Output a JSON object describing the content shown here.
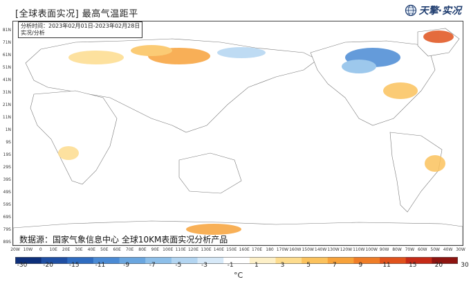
{
  "title": "[全球表面实况] 最高气温距平",
  "logo": {
    "text": "天擎·实况",
    "icon": "globe-icon",
    "color": "#1d3b6e"
  },
  "info": {
    "line1": "分析时间：2023年02月01日-2023年02月28日",
    "line2": "实况/分析"
  },
  "source": "数据源：国家气象信息中心  全球10KM表面实况分析产品",
  "lat_labels": [
    "81N",
    "71N",
    "61N",
    "51N",
    "41N",
    "31N",
    "21N",
    "11N",
    "1N",
    "9S",
    "19S",
    "29S",
    "39S",
    "49S",
    "59S",
    "69S",
    "79S",
    "89S"
  ],
  "lon_labels": [
    "20W",
    "10W",
    "0",
    "10E",
    "20E",
    "30E",
    "40E",
    "50E",
    "60E",
    "70E",
    "80E",
    "90E",
    "100E",
    "110E",
    "120E",
    "130E",
    "140E",
    "150E",
    "160E",
    "170E",
    "180",
    "170W",
    "160W",
    "150W",
    "140W",
    "130W",
    "120W",
    "110W",
    "100W",
    "90W",
    "80W",
    "70W",
    "60W",
    "50W",
    "40W",
    "30W"
  ],
  "colorbar": {
    "ticks": [
      "-30",
      "-20",
      "-15",
      "-11",
      "-9",
      "-7",
      "-5",
      "-3",
      "-1",
      "1",
      "3",
      "5",
      "7",
      "9",
      "11",
      "15",
      "20",
      "30"
    ],
    "colors": [
      "#0d2f7a",
      "#1f4fa3",
      "#2f6cc0",
      "#4a8ad4",
      "#6aa6df",
      "#8dbfe9",
      "#b3d5f1",
      "#d7e9f8",
      "#ffffff",
      "#fdf0c8",
      "#fddc8e",
      "#fbc25d",
      "#f7a23a",
      "#ef7d27",
      "#e0521c",
      "#c52a17",
      "#8d1410"
    ],
    "unit": "°C"
  },
  "colors": {
    "land": "#ffffff",
    "ocean": "#ffffff",
    "border": "#888888"
  }
}
